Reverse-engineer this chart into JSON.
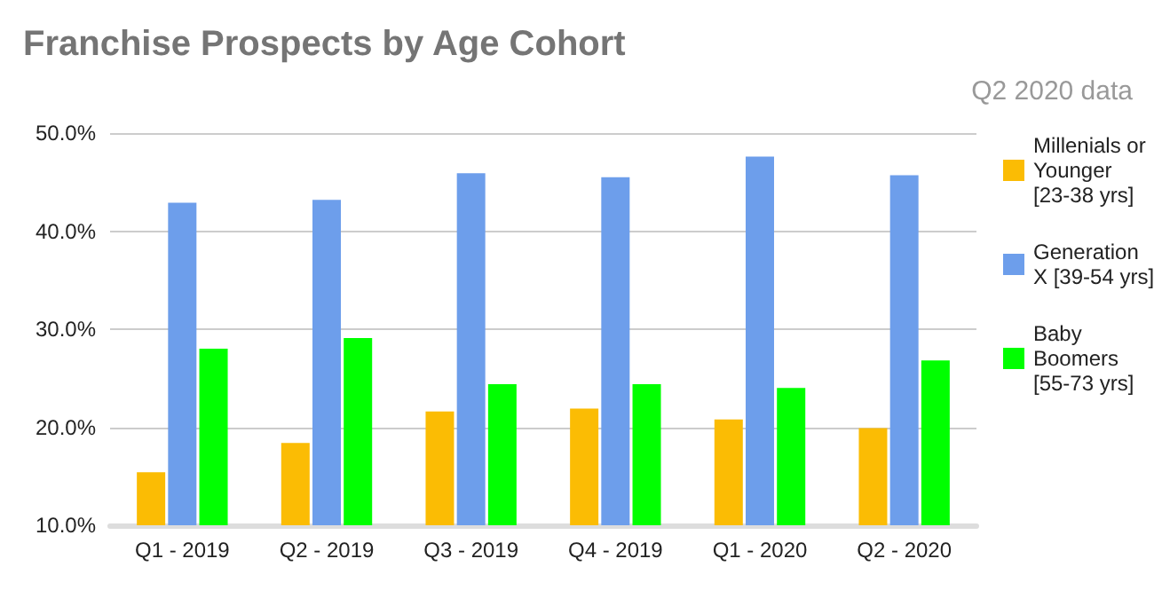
{
  "chart_data": {
    "type": "bar",
    "title": "Franchise Prospects by Age Cohort",
    "annotations": [
      "Q2 2020 data"
    ],
    "categories": [
      "Q1 - 2019",
      "Q2 - 2019",
      "Q3 - 2019",
      "Q4 - 2019",
      "Q1 - 2020",
      "Q2 - 2020"
    ],
    "series": [
      {
        "name": "Millenials or Younger [23-38 yrs]",
        "color": "#fbbc04",
        "values": [
          15.4,
          18.4,
          21.6,
          21.9,
          20.8,
          19.9
        ]
      },
      {
        "name": "Generation X [39-54 yrs]",
        "color": "#6d9eeb",
        "values": [
          42.9,
          43.2,
          45.9,
          45.5,
          47.6,
          45.7
        ]
      },
      {
        "name": "Baby Boomers [55-73 yrs]",
        "color": "#00ff00",
        "values": [
          28.0,
          29.1,
          24.4,
          24.4,
          24.0,
          26.8
        ]
      }
    ],
    "ylim": [
      10,
      50
    ],
    "yticks": [
      {
        "value": 10,
        "label": "10.0%"
      },
      {
        "value": 20,
        "label": "20.0%"
      },
      {
        "value": 30,
        "label": "30.0%"
      },
      {
        "value": 40,
        "label": "40.0%"
      },
      {
        "value": 50,
        "label": "50.0%"
      }
    ],
    "grid": "y",
    "legend": "right"
  }
}
